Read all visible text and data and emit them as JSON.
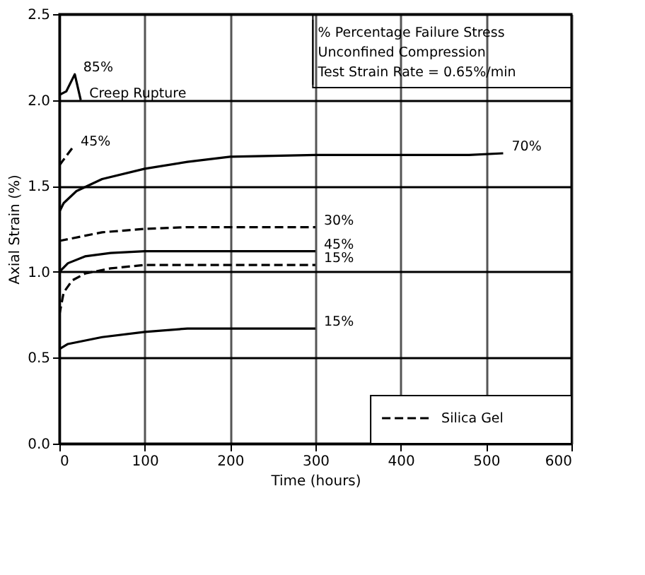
{
  "chart_data": {
    "type": "line",
    "xlabel": "Time (hours)",
    "ylabel": "Axial Strain (%)",
    "xlim": [
      0,
      600
    ],
    "xticks": [
      0,
      100,
      200,
      300,
      400,
      500,
      600
    ],
    "ylim": [
      0,
      2.5
    ],
    "yticks": [
      {
        "value": 0,
        "label": "0.0"
      },
      0.5,
      {
        "value": 1,
        "label": "1.0"
      },
      1.5,
      {
        "value": 2,
        "label": "2.0"
      },
      2.5
    ],
    "grid": true,
    "legend": "bottom right",
    "marker": "none",
    "series": [
      {
        "color": "#000000",
        "line_style": "solid",
        "x": [
          0,
          5,
          20,
          50,
          100,
          150,
          200,
          300,
          400,
          480,
          520
        ],
        "values": [
          1.35,
          1.4,
          1.47,
          1.54,
          1.6,
          1.64,
          1.67,
          1.68,
          1.68,
          1.68,
          1.69
        ]
      },
      {
        "color": "#000000",
        "line_style": "solid",
        "x": [
          0,
          10,
          30,
          60,
          100,
          200,
          300
        ],
        "values": [
          1.0,
          1.05,
          1.09,
          1.11,
          1.12,
          1.12,
          1.12
        ]
      },
      {
        "color": "#000000",
        "line_style": "solid",
        "x": [
          0,
          10,
          50,
          100,
          150,
          200,
          300
        ],
        "values": [
          0.55,
          0.58,
          0.62,
          0.65,
          0.67,
          0.67,
          0.67
        ]
      },
      {
        "color": "#000000",
        "line_style": "solid",
        "x": [
          0,
          8,
          18,
          25
        ],
        "values": [
          2.03,
          2.05,
          2.15,
          2.0
        ]
      },
      {
        "name": "Silica Gel",
        "color": "#000000",
        "line_style": "dashed",
        "x": [
          0,
          50,
          100,
          150,
          200,
          300
        ],
        "values": [
          1.18,
          1.23,
          1.25,
          1.26,
          1.26,
          1.26
        ]
      },
      {
        "color": "#000000",
        "line_style": "dashed",
        "x": [
          0,
          5,
          15,
          30,
          60,
          100,
          200,
          300
        ],
        "values": [
          0.75,
          0.88,
          0.95,
          0.99,
          1.02,
          1.04,
          1.04,
          1.04
        ]
      },
      {
        "color": "#000000",
        "line_style": "dashed",
        "x": [
          0,
          15
        ],
        "values": [
          1.62,
          1.72
        ]
      }
    ],
    "annotations": [
      "% Percentage Failure Stress",
      "Unconfined Compression",
      "Test Strain Rate =  0.65%/min",
      {
        "text": "85%",
        "x": 18,
        "y": 2.15
      },
      {
        "text": "Creep Rupture",
        "x": 25,
        "y": 2.0
      },
      {
        "text": "45%",
        "x": 15,
        "y": 1.72
      },
      {
        "text": "70%",
        "x": 520,
        "y": 1.69
      },
      {
        "text": "30%",
        "x": 300,
        "y": 1.26
      },
      {
        "text": "45%",
        "x": 300,
        "y": 1.12
      },
      {
        "text": "15%",
        "x": 300,
        "y": 1.04
      },
      {
        "text": "15%",
        "x": 300,
        "y": 0.67
      }
    ]
  }
}
